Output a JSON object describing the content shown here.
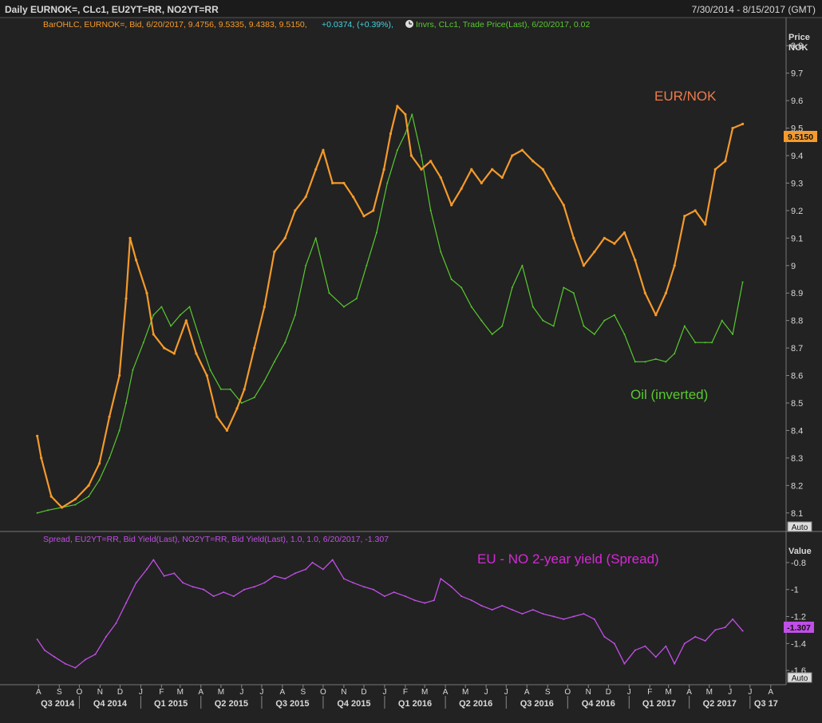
{
  "header": {
    "title": "Daily EURNOK=, CLc1, EU2YT=RR, NO2YT=RR",
    "date_range": "7/30/2014 - 8/15/2017 (GMT)"
  },
  "upper_pane": {
    "legend_eurnok": "BarOHLC, EURNOK=, Bid, 6/20/2017, 9.4756, 9.5335, 9.4383, 9.5150,",
    "legend_change": "+0.0374, (+0.39%),",
    "legend_oil": "Invrs, CLc1, Trade Price(Last), 6/20/2017, 0.02",
    "axis_title_line1": "Price",
    "axis_title_line2": "NOK",
    "last_value": "9.5150",
    "auto_label": "Auto",
    "annotation_eurnok": "EUR/NOK",
    "annotation_oil": "Oil (inverted)"
  },
  "lower_pane": {
    "legend": "Spread, EU2YT=RR, Bid Yield(Last), NO2YT=RR, Bid Yield(Last), 1.0, 1.0, 6/20/2017, -1.307",
    "axis_title": "Value",
    "last_value": "-1.307",
    "auto_label": "Auto",
    "annotation": "EU - NO 2-year yield (Spread)"
  },
  "colors": {
    "background": "#222222",
    "eurnok": "#f59a2b",
    "oil": "#58c92f",
    "spread": "#c14fe6",
    "text": "#d8d8d8",
    "grid": "#3a3a3a"
  },
  "chart_data": [
    {
      "type": "bar",
      "title": "",
      "series": [
        {
          "name": "EURNOK=",
          "x": [
            "2014-07-30",
            "2014-08-05",
            "2014-08-20",
            "2014-09-05",
            "2014-09-25",
            "2014-10-15",
            "2014-10-31",
            "2014-11-15",
            "2014-11-30",
            "2014-12-10",
            "2014-12-16",
            "2014-12-25",
            "2015-01-10",
            "2015-01-20",
            "2015-02-05",
            "2015-02-20",
            "2015-03-10",
            "2015-03-25",
            "2015-04-10",
            "2015-04-25",
            "2015-05-10",
            "2015-05-25",
            "2015-06-05",
            "2015-06-20",
            "2015-07-05",
            "2015-07-20",
            "2015-08-05",
            "2015-08-20",
            "2015-09-05",
            "2015-09-20",
            "2015-10-01",
            "2015-10-15",
            "2015-11-01",
            "2015-11-15",
            "2015-12-01",
            "2015-12-15",
            "2015-12-31",
            "2016-01-10",
            "2016-01-20",
            "2016-02-01",
            "2016-02-10",
            "2016-02-25",
            "2016-03-10",
            "2016-03-25",
            "2016-04-10",
            "2016-04-25",
            "2016-05-10",
            "2016-05-25",
            "2016-06-10",
            "2016-06-25",
            "2016-07-10",
            "2016-07-25",
            "2016-08-10",
            "2016-08-25",
            "2016-09-10",
            "2016-09-25",
            "2016-10-10",
            "2016-10-25",
            "2016-11-10",
            "2016-11-25",
            "2016-12-10",
            "2016-12-25",
            "2017-01-10",
            "2017-01-25",
            "2017-02-10",
            "2017-02-25",
            "2017-03-10",
            "2017-03-25",
            "2017-04-10",
            "2017-04-25",
            "2017-05-10",
            "2017-05-25",
            "2017-06-05",
            "2017-06-20"
          ],
          "values": [
            8.38,
            8.3,
            8.16,
            8.12,
            8.15,
            8.2,
            8.28,
            8.45,
            8.6,
            8.88,
            9.1,
            9.02,
            8.9,
            8.75,
            8.7,
            8.68,
            8.8,
            8.68,
            8.6,
            8.45,
            8.4,
            8.48,
            8.55,
            8.7,
            8.85,
            9.05,
            9.1,
            9.2,
            9.25,
            9.35,
            9.42,
            9.3,
            9.3,
            9.25,
            9.18,
            9.2,
            9.35,
            9.48,
            9.58,
            9.55,
            9.4,
            9.35,
            9.38,
            9.32,
            9.22,
            9.28,
            9.35,
            9.3,
            9.35,
            9.32,
            9.4,
            9.42,
            9.38,
            9.35,
            9.28,
            9.22,
            9.1,
            9.0,
            9.05,
            9.1,
            9.08,
            9.12,
            9.02,
            8.9,
            8.82,
            8.9,
            9.0,
            9.18,
            9.2,
            9.15,
            9.35,
            9.38,
            9.5,
            9.515
          ]
        },
        {
          "name": "CLc1 (inverted)",
          "x": [
            "2014-07-30",
            "2014-08-15",
            "2014-09-05",
            "2014-09-25",
            "2014-10-15",
            "2014-10-31",
            "2014-11-15",
            "2014-11-30",
            "2014-12-10",
            "2014-12-20",
            "2015-01-05",
            "2015-01-20",
            "2015-02-01",
            "2015-02-15",
            "2015-03-01",
            "2015-03-15",
            "2015-04-01",
            "2015-04-15",
            "2015-05-01",
            "2015-05-15",
            "2015-06-01",
            "2015-06-20",
            "2015-07-05",
            "2015-07-20",
            "2015-08-05",
            "2015-08-20",
            "2015-09-05",
            "2015-09-20",
            "2015-10-10",
            "2015-11-01",
            "2015-11-20",
            "2015-12-05",
            "2015-12-20",
            "2016-01-05",
            "2016-01-20",
            "2016-02-01",
            "2016-02-11",
            "2016-02-25",
            "2016-03-10",
            "2016-03-25",
            "2016-04-10",
            "2016-04-25",
            "2016-05-10",
            "2016-05-25",
            "2016-06-10",
            "2016-06-25",
            "2016-07-10",
            "2016-07-25",
            "2016-08-10",
            "2016-08-25",
            "2016-09-10",
            "2016-09-25",
            "2016-10-10",
            "2016-10-25",
            "2016-11-10",
            "2016-11-25",
            "2016-12-10",
            "2016-12-25",
            "2017-01-10",
            "2017-01-25",
            "2017-02-10",
            "2017-02-25",
            "2017-03-10",
            "2017-03-25",
            "2017-04-10",
            "2017-04-25",
            "2017-05-05",
            "2017-05-20",
            "2017-06-05",
            "2017-06-20"
          ],
          "values": [
            8.1,
            8.11,
            8.12,
            8.13,
            8.16,
            8.22,
            8.3,
            8.4,
            8.5,
            8.62,
            8.72,
            8.82,
            8.85,
            8.78,
            8.82,
            8.85,
            8.72,
            8.62,
            8.55,
            8.55,
            8.5,
            8.52,
            8.58,
            8.65,
            8.72,
            8.82,
            9.0,
            9.1,
            8.9,
            8.85,
            8.88,
            9.0,
            9.12,
            9.3,
            9.42,
            9.48,
            9.55,
            9.4,
            9.2,
            9.05,
            8.95,
            8.92,
            8.85,
            8.8,
            8.75,
            8.78,
            8.92,
            9.0,
            8.85,
            8.8,
            8.78,
            8.92,
            8.9,
            8.78,
            8.75,
            8.8,
            8.82,
            8.75,
            8.65,
            8.65,
            8.66,
            8.65,
            8.68,
            8.78,
            8.72,
            8.72,
            8.72,
            8.8,
            8.75,
            8.94
          ]
        }
      ],
      "ylabel": "Price NOK",
      "ylim": [
        8.05,
        9.85
      ],
      "yticks": [
        8.1,
        8.2,
        8.3,
        8.4,
        8.5,
        8.6,
        8.7,
        8.8,
        8.9,
        9,
        9.1,
        9.2,
        9.3,
        9.4,
        9.5,
        9.6,
        9.7,
        9.8
      ],
      "ytick_labels": [
        "8.1",
        "8.2",
        "8.3",
        "8.4",
        "8.5",
        "8.6",
        "8.7",
        "8.8",
        "8.9",
        "9",
        "9.1",
        "9.2",
        "9.3",
        "9.4",
        "9.5",
        "9.6",
        "9.7",
        "9.8"
      ],
      "grid": false
    },
    {
      "type": "line",
      "title": "",
      "series": [
        {
          "name": "Spread",
          "x": [
            "2014-07-30",
            "2014-08-10",
            "2014-08-25",
            "2014-09-10",
            "2014-09-25",
            "2014-10-10",
            "2014-10-25",
            "2014-11-10",
            "2014-11-25",
            "2014-12-10",
            "2014-12-25",
            "2015-01-10",
            "2015-01-20",
            "2015-02-05",
            "2015-02-20",
            "2015-03-05",
            "2015-03-20",
            "2015-04-05",
            "2015-04-20",
            "2015-05-05",
            "2015-05-20",
            "2015-06-05",
            "2015-06-20",
            "2015-07-05",
            "2015-07-20",
            "2015-08-05",
            "2015-08-20",
            "2015-09-05",
            "2015-09-15",
            "2015-10-01",
            "2015-10-15",
            "2015-11-01",
            "2015-11-15",
            "2015-12-01",
            "2015-12-15",
            "2016-01-01",
            "2016-01-15",
            "2016-02-01",
            "2016-02-15",
            "2016-03-01",
            "2016-03-15",
            "2016-03-25",
            "2016-04-10",
            "2016-04-25",
            "2016-05-10",
            "2016-05-25",
            "2016-06-10",
            "2016-06-25",
            "2016-07-10",
            "2016-07-25",
            "2016-08-10",
            "2016-08-25",
            "2016-09-10",
            "2016-09-25",
            "2016-10-10",
            "2016-10-25",
            "2016-11-10",
            "2016-11-25",
            "2016-12-10",
            "2016-12-25",
            "2017-01-10",
            "2017-01-25",
            "2017-02-10",
            "2017-02-25",
            "2017-03-10",
            "2017-03-25",
            "2017-04-10",
            "2017-04-25",
            "2017-05-10",
            "2017-05-25",
            "2017-06-05",
            "2017-06-20"
          ],
          "values": [
            -1.37,
            -1.45,
            -1.5,
            -1.55,
            -1.58,
            -1.52,
            -1.48,
            -1.35,
            -1.25,
            -1.1,
            -0.95,
            -0.85,
            -0.78,
            -0.9,
            -0.88,
            -0.95,
            -0.98,
            -1.0,
            -1.05,
            -1.02,
            -1.05,
            -1.0,
            -0.98,
            -0.95,
            -0.9,
            -0.92,
            -0.88,
            -0.85,
            -0.8,
            -0.85,
            -0.78,
            -0.92,
            -0.95,
            -0.98,
            -1.0,
            -1.05,
            -1.02,
            -1.05,
            -1.08,
            -1.1,
            -1.08,
            -0.92,
            -0.98,
            -1.05,
            -1.08,
            -1.12,
            -1.15,
            -1.12,
            -1.15,
            -1.18,
            -1.15,
            -1.18,
            -1.2,
            -1.22,
            -1.2,
            -1.18,
            -1.22,
            -1.35,
            -1.4,
            -1.55,
            -1.45,
            -1.42,
            -1.5,
            -1.42,
            -1.55,
            -1.4,
            -1.35,
            -1.38,
            -1.3,
            -1.28,
            -1.22,
            -1.307
          ]
        }
      ],
      "ylabel": "Value",
      "ylim": [
        -1.67,
        -0.7
      ],
      "yticks": [
        -0.8,
        -1,
        -1.2,
        -1.4,
        -1.6
      ],
      "ytick_labels": [
        "-0.8",
        "-1",
        "-1.2",
        "-1.4",
        "-1.6"
      ],
      "grid": false
    }
  ],
  "x_axis": {
    "month_ticks": [
      "A",
      "S",
      "O",
      "N",
      "D",
      "J",
      "F",
      "M",
      "A",
      "M",
      "J",
      "J",
      "A",
      "S",
      "O",
      "N",
      "D",
      "J",
      "F",
      "M",
      "A",
      "M",
      "J",
      "J",
      "A",
      "S",
      "O",
      "N",
      "D",
      "J",
      "F",
      "M",
      "A",
      "M",
      "J",
      "J",
      "A"
    ],
    "quarter_labels": [
      "Q3 2014",
      "Q4 2014",
      "Q1 2015",
      "Q2 2015",
      "Q3 2015",
      "Q4 2015",
      "Q1 2016",
      "Q2 2016",
      "Q3 2016",
      "Q4 2016",
      "Q1 2017",
      "Q2 2017",
      "Q3 17"
    ]
  }
}
